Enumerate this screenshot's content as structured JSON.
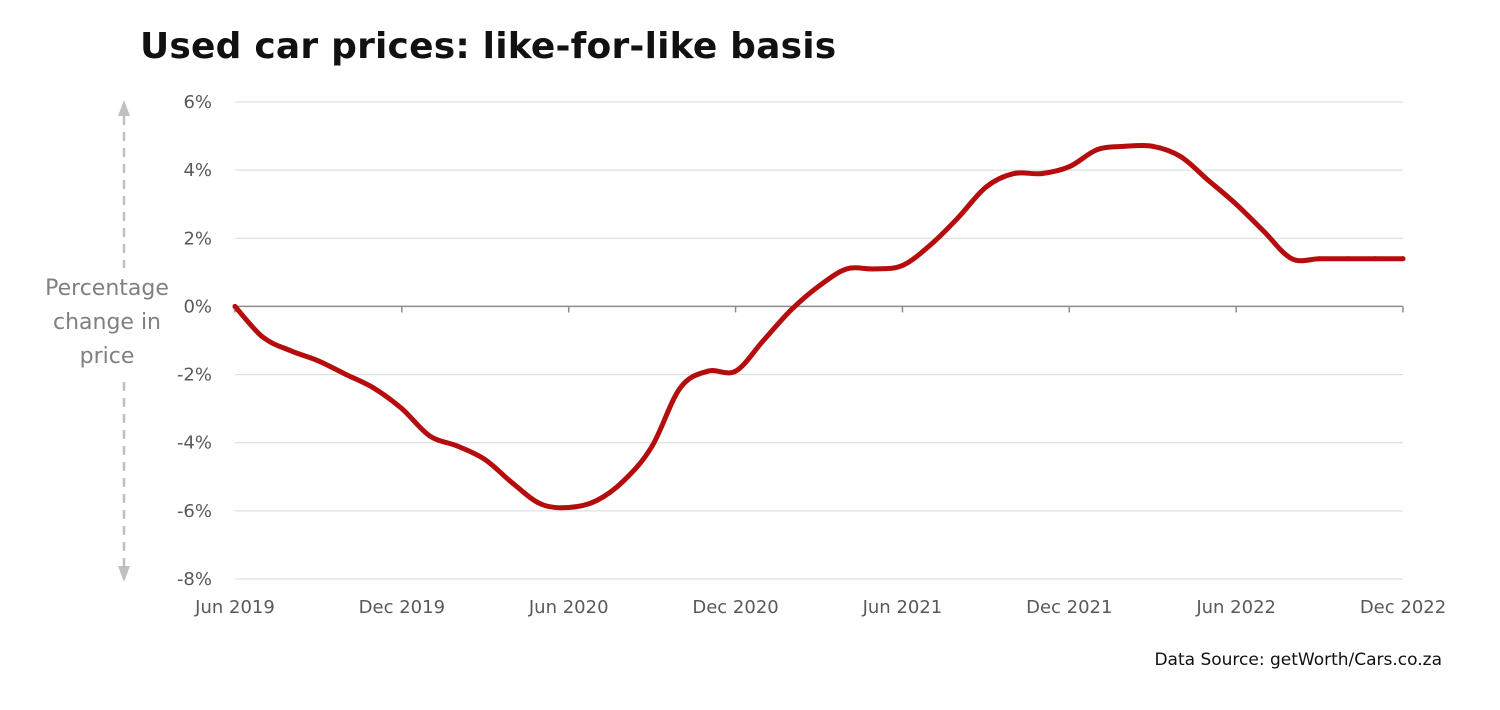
{
  "chart_data": {
    "type": "line",
    "title": "Used car prices: like-for-like basis",
    "ylabel": "Percentage change in price",
    "xlabel": "",
    "source": "Data Source: getWorth/Cars.co.za",
    "x_ticks": [
      "Jun 2019",
      "Dec 2019",
      "Jun 2020",
      "Dec 2020",
      "Jun 2021",
      "Dec 2021",
      "Jun 2022",
      "Dec 2022"
    ],
    "y_ticks": [
      "6%",
      "4%",
      "2%",
      "0%",
      "-2%",
      "-4%",
      "-6%",
      "-8%"
    ],
    "ylim": [
      -8,
      6
    ],
    "y_tick_values": [
      6,
      4,
      2,
      0,
      -2,
      -4,
      -6,
      -8
    ],
    "grid": true,
    "legend": "none",
    "colors": {
      "line": "#b50d0d",
      "grid": "#d9d9d9",
      "axis": "#8c8c8c",
      "arrow": "#bfbfbf",
      "ylabel": "#808080",
      "tick_label": "#595959"
    },
    "series": [
      {
        "x": [
          "2019-06",
          "2019-07",
          "2019-08",
          "2019-09",
          "2019-10",
          "2019-11",
          "2019-12",
          "2020-01",
          "2020-02",
          "2020-03",
          "2020-04",
          "2020-05",
          "2020-06",
          "2020-07",
          "2020-08",
          "2020-09",
          "2020-10",
          "2020-11",
          "2020-12",
          "2021-01",
          "2021-02",
          "2021-03",
          "2021-04",
          "2021-05",
          "2021-06",
          "2021-07",
          "2021-08",
          "2021-09",
          "2021-10",
          "2021-11",
          "2021-12",
          "2022-01",
          "2022-02",
          "2022-03",
          "2022-04",
          "2022-05",
          "2022-06",
          "2022-07",
          "2022-08",
          "2022-09",
          "2022-10",
          "2022-11",
          "2022-12"
        ],
        "values": [
          0,
          -0.9,
          -1.3,
          -1.6,
          -2.0,
          -2.4,
          -3.0,
          -3.8,
          -4.1,
          -4.5,
          -5.2,
          -5.8,
          -5.9,
          -5.7,
          -5.1,
          -4.1,
          -2.4,
          -1.9,
          -1.9,
          -1.0,
          -0.1,
          0.6,
          1.1,
          1.1,
          1.2,
          1.8,
          2.6,
          3.5,
          3.9,
          3.9,
          4.1,
          4.6,
          4.7,
          4.7,
          4.4,
          3.7,
          3.0,
          2.2,
          1.4,
          1.4,
          1.4,
          1.4,
          1.4
        ]
      }
    ]
  }
}
